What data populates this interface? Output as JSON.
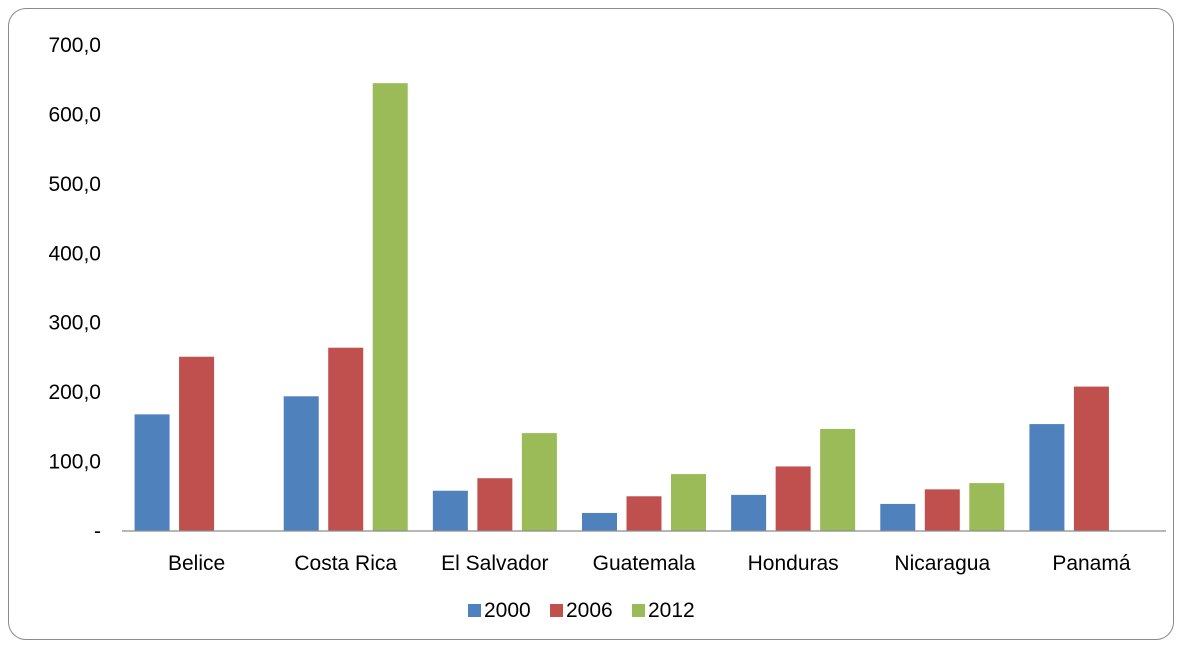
{
  "chart_data": {
    "type": "bar",
    "title": "",
    "xlabel": "",
    "ylabel": "",
    "categories": [
      "Belice",
      "Costa Rica",
      "El Salvador",
      "Guatemala",
      "Honduras",
      "Nicaragua",
      "Panamá"
    ],
    "series": [
      {
        "name": "2000",
        "color": "#4f81bd",
        "values": [
          168,
          194,
          58,
          26,
          52,
          39,
          154
        ]
      },
      {
        "name": "2006",
        "color": "#c0504d",
        "values": [
          251,
          264,
          76,
          50,
          93,
          60,
          208
        ]
      },
      {
        "name": "2012",
        "color": "#9bbb59",
        "values": [
          0,
          645,
          141,
          82,
          147,
          69,
          0
        ]
      }
    ],
    "ylim": [
      0,
      700
    ],
    "yticks": [
      0,
      100,
      200,
      300,
      400,
      500,
      600,
      700
    ],
    "ytick_labels": [
      "-",
      "100,0",
      "200,0",
      "300,0",
      "400,0",
      "500,0",
      "600,0",
      "700,0"
    ],
    "grid": false,
    "legend_position": "bottom"
  }
}
